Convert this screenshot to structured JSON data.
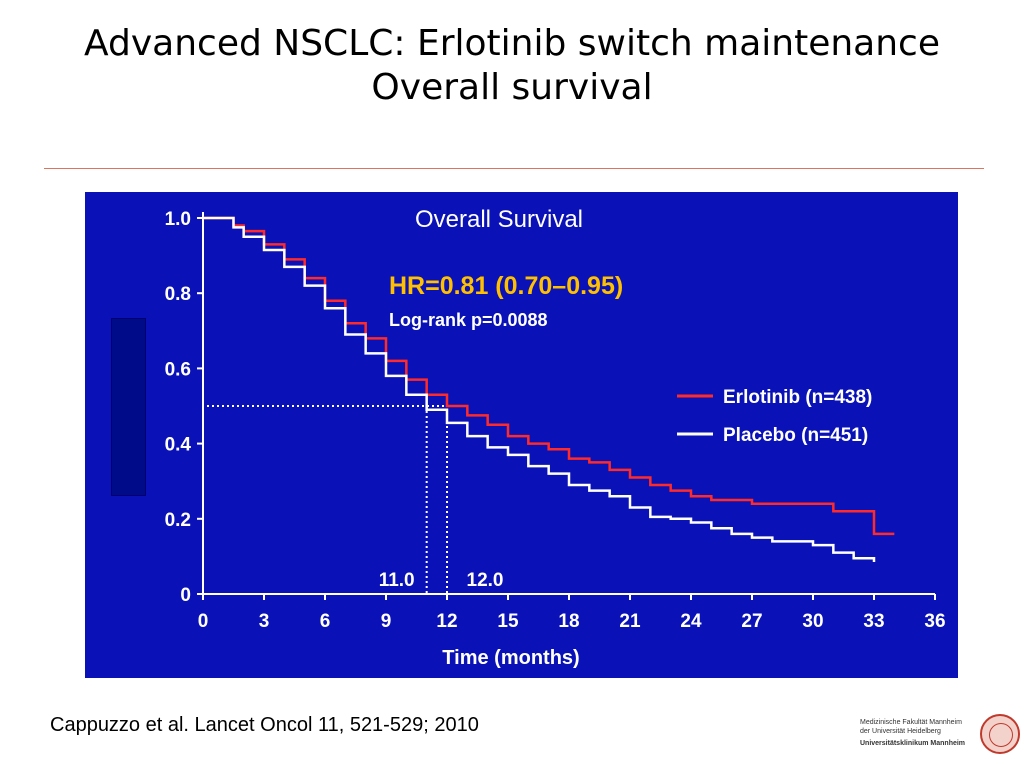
{
  "slide": {
    "title_line1": "Advanced NSCLC: Erlotinib switch maintenance",
    "title_line2": "Overall survival",
    "citation": "Cappuzzo et al. Lancet Oncol 11, 521-529; 2010",
    "logo": {
      "line1": "Medizinische Fakultät Mannheim",
      "line2": "der Universität Heidelberg",
      "line3": "Universitätsklinikum Mannheim"
    }
  },
  "colors": {
    "panel_bg": "#0a11b7",
    "erlotinib": "#ff2a2a",
    "placebo": "#ffffff",
    "hr_text": "#ffc000",
    "axis": "#ffffff"
  },
  "chart_data": {
    "type": "line",
    "title": "Overall Survival",
    "xlabel": "Time (months)",
    "ylabel": "",
    "xlim": [
      0,
      36
    ],
    "ylim": [
      0,
      1.0
    ],
    "x_ticks": [
      "0",
      "3",
      "6",
      "9",
      "12",
      "15",
      "18",
      "21",
      "24",
      "27",
      "30",
      "33",
      "36"
    ],
    "y_ticks": [
      "0",
      "0.2",
      "0.4",
      "0.6",
      "0.8",
      "1.0"
    ],
    "annotations": {
      "hr": "HR=0.81 (0.70–0.95)",
      "logrank": "Log-rank p=0.0088",
      "median_placebo": "11.0",
      "median_erlotinib": "12.0"
    },
    "medians": {
      "placebo": 11.0,
      "erlotinib": 12.0,
      "survival_level": 0.5
    },
    "legend_position": "right",
    "series": [
      {
        "name": "Erlotinib (n=438)",
        "x": [
          0,
          0.8,
          1.5,
          2,
          3,
          4,
          5,
          6,
          7,
          8,
          9,
          10,
          11,
          12,
          13,
          14,
          15,
          16,
          17,
          18,
          19,
          20,
          21,
          22,
          23,
          24,
          25,
          26,
          27,
          28,
          29,
          30,
          31,
          32,
          32.5,
          33,
          34
        ],
        "y": [
          1.0,
          1.0,
          0.98,
          0.965,
          0.93,
          0.89,
          0.84,
          0.78,
          0.72,
          0.68,
          0.62,
          0.57,
          0.53,
          0.5,
          0.475,
          0.45,
          0.42,
          0.4,
          0.385,
          0.36,
          0.35,
          0.33,
          0.31,
          0.29,
          0.275,
          0.26,
          0.25,
          0.25,
          0.24,
          0.24,
          0.24,
          0.24,
          0.22,
          0.22,
          0.22,
          0.16,
          0.16
        ]
      },
      {
        "name": "Placebo (n=451)",
        "x": [
          0,
          0.8,
          1.5,
          2,
          3,
          4,
          5,
          6,
          7,
          8,
          9,
          10,
          11,
          12,
          13,
          14,
          15,
          16,
          17,
          18,
          19,
          20,
          21,
          22,
          23,
          24,
          25,
          26,
          27,
          28,
          29,
          30,
          31,
          32,
          33
        ],
        "y": [
          1.0,
          1.0,
          0.975,
          0.95,
          0.915,
          0.87,
          0.82,
          0.76,
          0.69,
          0.64,
          0.58,
          0.53,
          0.49,
          0.455,
          0.42,
          0.39,
          0.37,
          0.34,
          0.32,
          0.29,
          0.275,
          0.26,
          0.23,
          0.205,
          0.2,
          0.19,
          0.175,
          0.16,
          0.15,
          0.14,
          0.14,
          0.13,
          0.11,
          0.095,
          0.085
        ]
      }
    ]
  }
}
